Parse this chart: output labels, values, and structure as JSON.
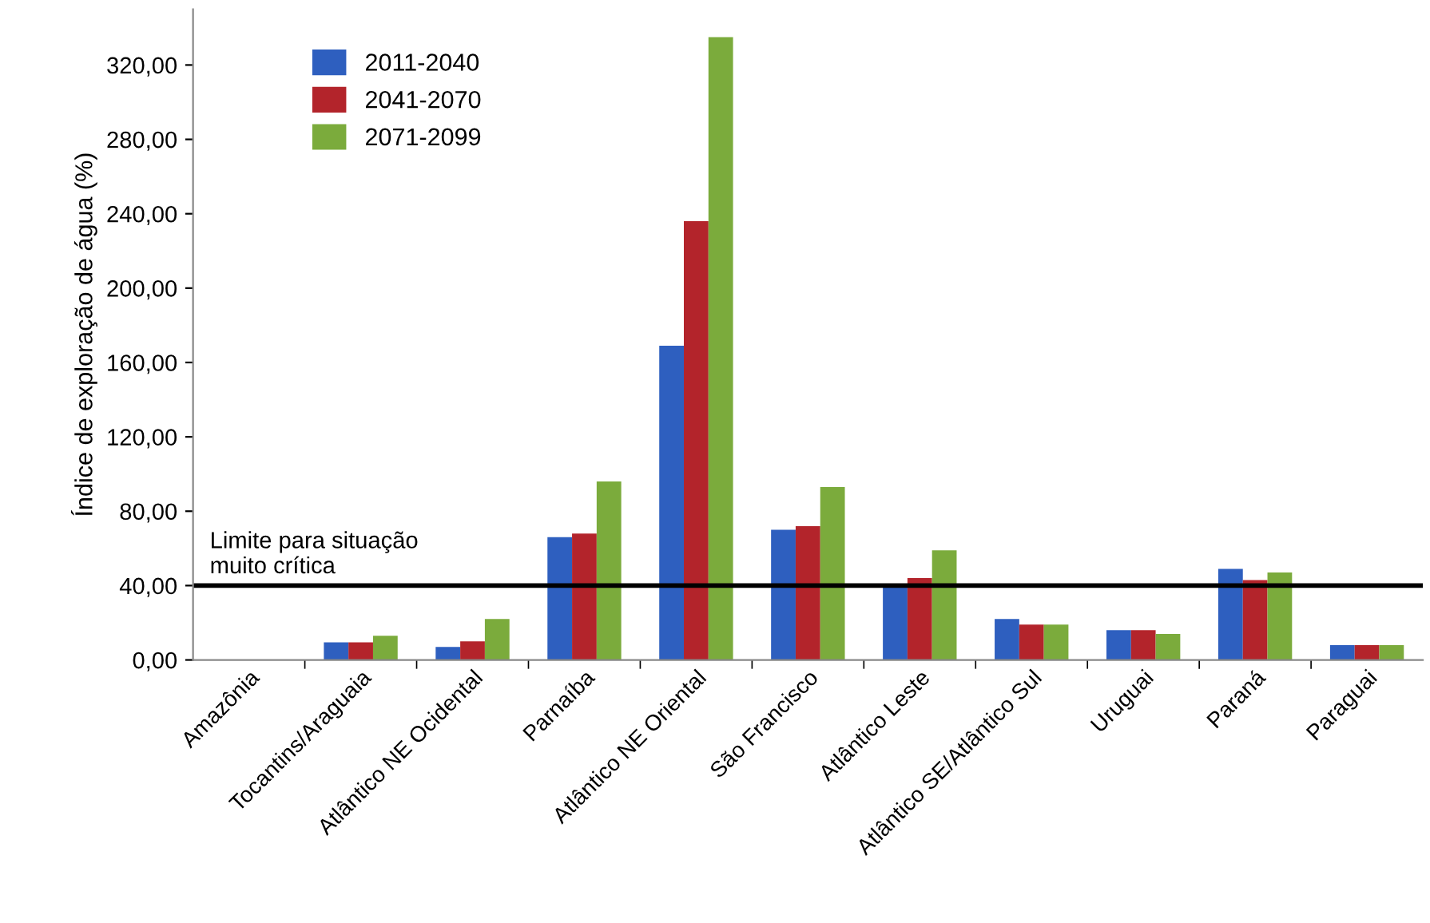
{
  "chart_data": {
    "type": "bar",
    "ylabel": "Índice de exploração de água (%)",
    "categories": [
      "Amazônia",
      "Tocantins/Araguaia",
      "Atlântico NE Ocidental",
      "Parnaíba",
      "Atlântico NE Oriental",
      "São Francisco",
      "Atlântico Leste",
      "Atlântico SE/Atlântico Sul",
      "Uruguai",
      "Paraná",
      "Paraguai"
    ],
    "series": [
      {
        "name": "2011-2040",
        "color": "#2e5fbf",
        "values": [
          0,
          9.5,
          7,
          66,
          169,
          70,
          40,
          22,
          16,
          49,
          8
        ]
      },
      {
        "name": "2041-2070",
        "color": "#b3242b",
        "values": [
          0,
          9.5,
          10,
          68,
          236,
          72,
          44,
          19,
          16,
          43,
          8
        ]
      },
      {
        "name": "2071-2099",
        "color": "#7bab3c",
        "values": [
          0,
          13,
          22,
          96,
          335,
          93,
          59,
          19,
          14,
          47,
          8
        ]
      }
    ],
    "ylim": [
      0,
      350
    ],
    "yticks": [
      {
        "value": 0,
        "label": "0,00"
      },
      {
        "value": 40,
        "label": "40,00"
      },
      {
        "value": 80,
        "label": "80,00"
      },
      {
        "value": 120,
        "label": "120,00"
      },
      {
        "value": 160,
        "label": "160,00"
      },
      {
        "value": 200,
        "label": "200,00"
      },
      {
        "value": 240,
        "label": "240,00"
      },
      {
        "value": 280,
        "label": "280,00"
      },
      {
        "value": 320,
        "label": "320,00"
      }
    ],
    "ref_lines": [
      {
        "axis": "y",
        "value": 40,
        "label": "Limite para situação\nmuito crítica",
        "color": "#000000"
      }
    ],
    "legend": "top left",
    "grid": false
  }
}
